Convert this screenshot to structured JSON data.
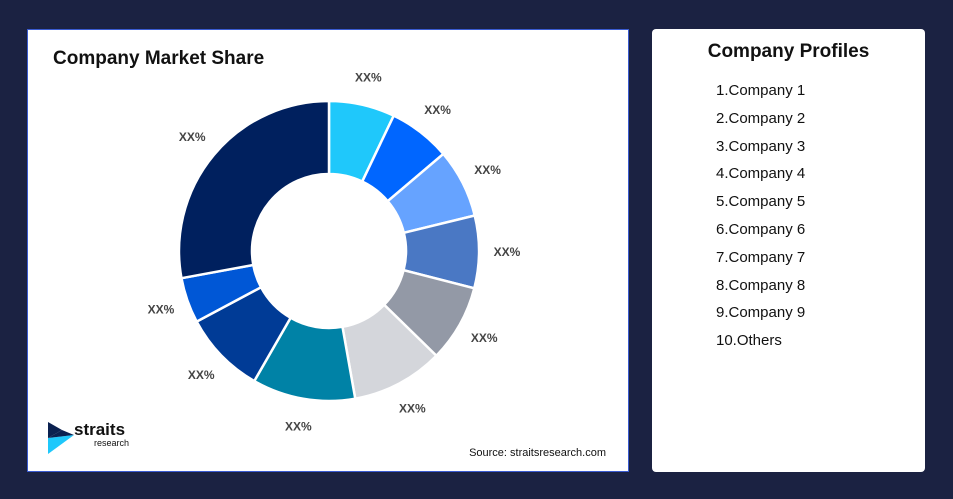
{
  "chart_data": {
    "type": "pie",
    "title": "Company Market Share",
    "donut": true,
    "categories": [
      "Company 1",
      "Company 2",
      "Company 3",
      "Company 4",
      "Company 5",
      "Company 6",
      "Company 7",
      "Company 8",
      "Company 9",
      "Others"
    ],
    "values": [
      7.1,
      6.7,
      7.4,
      7.8,
      8.3,
      9.9,
      11.1,
      8.9,
      4.9,
      27.9
    ],
    "data_labels": [
      "XX%",
      "XX%",
      "XX%",
      "XX%",
      "XX%",
      "XX%",
      "XX%",
      "XX%",
      "XX%",
      "XX%"
    ],
    "colors": [
      "#1fc8fb",
      "#0066ff",
      "#66a3ff",
      "#4a78c4",
      "#9399a6",
      "#d4d6db",
      "#0082a6",
      "#003b96",
      "#0057d6",
      "#00205e"
    ],
    "legend": "none"
  },
  "source": "Source: straitsresearch.com",
  "logo": {
    "brand": "straits",
    "sub": "research"
  },
  "profiles": {
    "title": "Company Profiles",
    "items": [
      "1.Company 1",
      "2.Company 2",
      "3.Company 3",
      "4.Company 4",
      "5.Company 5",
      "6.Company 6",
      "7.Company 7",
      "8.Company 8",
      "9.Company 9",
      "10.Others"
    ]
  }
}
